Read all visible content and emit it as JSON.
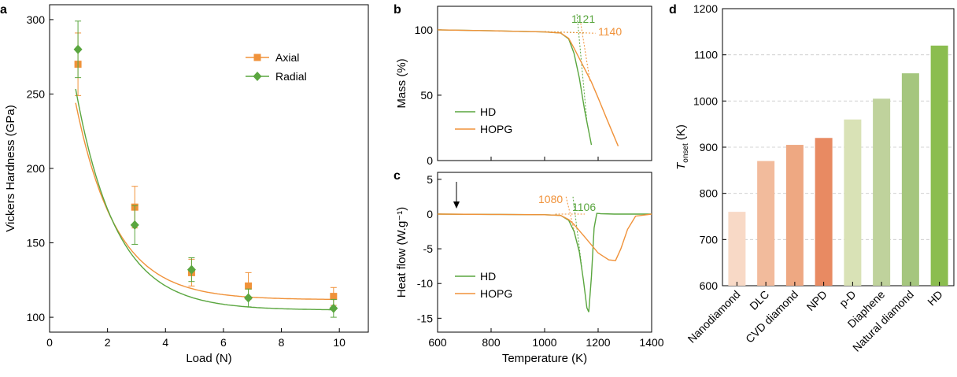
{
  "chart_data": [
    {
      "panel": "a",
      "type": "line",
      "xlabel": "Load (N)",
      "ylabel": "Vickers Hardness (GPa)",
      "xlim": [
        0,
        11
      ],
      "ylim": [
        90,
        310
      ],
      "xticks": [
        0,
        2,
        4,
        6,
        8,
        10
      ],
      "yticks": [
        100,
        150,
        200,
        250,
        300
      ],
      "legend": "top-right",
      "series": [
        {
          "name": "Axial",
          "color": "#f0923a",
          "marker": "square",
          "x": [
            0.98,
            2.94,
            4.9,
            6.86,
            9.8
          ],
          "y": [
            270,
            174,
            130,
            121,
            114
          ],
          "err": [
            21,
            14,
            9,
            9,
            6
          ],
          "fit": {
            "a": 111.8,
            "b": 252.5,
            "c": 0.7184
          }
        },
        {
          "name": "Radial",
          "color": "#5aa63f",
          "marker": "diamond",
          "x": [
            0.98,
            2.94,
            4.9,
            6.86,
            9.8
          ],
          "y": [
            280,
            162,
            132,
            113,
            106
          ],
          "err": [
            19,
            13,
            8,
            6,
            6
          ],
          "fit": {
            "a": 104.8,
            "b": 282.3,
            "c": 0.7129
          }
        }
      ]
    },
    {
      "panel": "b",
      "type": "line",
      "ylabel": "Mass (%)",
      "xlim": [
        600,
        1400
      ],
      "ylim": [
        0,
        118
      ],
      "yticks": [
        0,
        50,
        100
      ],
      "legend": "bottom-left",
      "annotations": [
        {
          "text": "1121",
          "color": "#5aa63f"
        },
        {
          "text": "1140",
          "color": "#f0923a"
        }
      ],
      "series": [
        {
          "name": "HD",
          "color": "#5aa63f",
          "x": [
            600,
            800,
            1000,
            1060,
            1090,
            1110,
            1130,
            1150,
            1175
          ],
          "y": [
            100,
            99.3,
            98.4,
            97.6,
            93,
            82,
            63,
            38,
            12
          ]
        },
        {
          "name": "HOPG",
          "color": "#f0923a",
          "x": [
            600,
            800,
            1000,
            1060,
            1090,
            1110,
            1130,
            1150,
            1175,
            1200,
            1230,
            1275
          ],
          "y": [
            100,
            99.3,
            98.4,
            97.6,
            93.5,
            86,
            78,
            70,
            60,
            48,
            33,
            11
          ]
        }
      ]
    },
    {
      "panel": "c",
      "type": "line",
      "xlabel": "Temperature (K)",
      "ylabel": "Heat flow (W.g⁻¹)",
      "xlim": [
        600,
        1400
      ],
      "ylim": [
        -17,
        6
      ],
      "xticks": [
        600,
        800,
        1000,
        1200,
        1400
      ],
      "yticks": [
        -15,
        -10,
        -5,
        0,
        5
      ],
      "legend": "bottom-left",
      "annotations": [
        {
          "text": "1080",
          "color": "#f0923a"
        },
        {
          "text": "1106",
          "color": "#5aa63f"
        }
      ],
      "series": [
        {
          "name": "HD",
          "color": "#5aa63f",
          "x": [
            600,
            800,
            1000,
            1060,
            1090,
            1110,
            1130,
            1145,
            1158,
            1165,
            1175,
            1185,
            1195,
            1210,
            1260,
            1400
          ],
          "y": [
            0,
            -0.05,
            -0.1,
            -0.2,
            -0.9,
            -2.5,
            -5.5,
            -9.5,
            -13.5,
            -14.1,
            -9,
            -2,
            0.1,
            0.05,
            0,
            0
          ]
        },
        {
          "name": "HOPG",
          "color": "#f0923a",
          "x": [
            600,
            800,
            1000,
            1060,
            1090,
            1110,
            1150,
            1200,
            1240,
            1265,
            1285,
            1310,
            1340,
            1400
          ],
          "y": [
            0,
            -0.05,
            -0.1,
            -0.2,
            -0.8,
            -1.5,
            -3.3,
            -5.6,
            -6.6,
            -6.7,
            -5,
            -2.2,
            -0.3,
            0
          ]
        }
      ]
    },
    {
      "panel": "d",
      "type": "bar",
      "ylabel": "Tonset (K)",
      "ylabel_main": "T",
      "ylabel_sub": "onset",
      "ylabel_unit": "(K)",
      "ylim": [
        600,
        1200
      ],
      "yticks": [
        600,
        700,
        800,
        900,
        1000,
        1100,
        1200
      ],
      "grid": true,
      "categories": [
        "Nanodiamond",
        "DLC",
        "CVD diamond",
        "NPD",
        "p-D",
        "Diaphene",
        "Natural diamond",
        "HD"
      ],
      "values": [
        760,
        870,
        905,
        920,
        960,
        1005,
        1060,
        1120
      ],
      "colors": [
        "#f8d9c6",
        "#f2bb9c",
        "#eea882",
        "#e88a62",
        "#d9e2b6",
        "#bfd29c",
        "#a5c67e",
        "#8bbd4f"
      ]
    }
  ],
  "panel_labels": {
    "a": "a",
    "b": "b",
    "c": "c",
    "d": "d"
  }
}
